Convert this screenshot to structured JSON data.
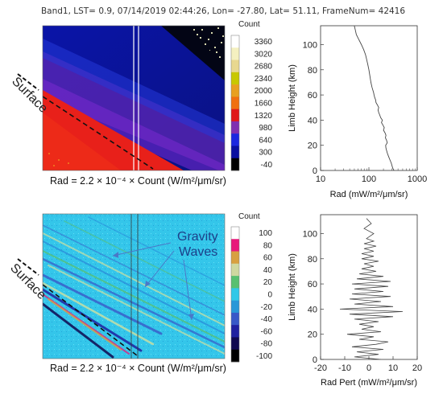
{
  "header": {
    "text": "Band1, LST= 0.9, 07/14/2019 02:44:26, Lon= -27.80, Lat= 51.11, FrameNum=  42416"
  },
  "labels": {
    "surface_top": "Surface",
    "surface_bottom": "Surface",
    "gravity_line1": "Gravity",
    "gravity_line2": "Waves",
    "formula_top": "Rad = 2.2 × 10⁻⁴ × Count (W/m²/μm/sr)",
    "formula_bottom": "Rad = 2.2 × 10⁻⁴ × Count (W/m²/μm/sr)"
  },
  "colors": {
    "top_background": "#0c1a9c",
    "surface_red": "#e8201a",
    "bottom_background": "#30c8e8",
    "profile_line": "#444444"
  },
  "chart_data": [
    {
      "type": "heatmap",
      "title": "",
      "colorbar": {
        "title": "Count",
        "ticks": [
          "3360",
          "3020",
          "2680",
          "2340",
          "2000",
          "1660",
          "1320",
          "980",
          "640",
          "300",
          "-40"
        ],
        "colors": [
          "#ffffff",
          "#f4f0c0",
          "#e8d890",
          "#c8c800",
          "#e8a020",
          "#f07010",
          "#e01818",
          "#8030b0",
          "#1c28e0",
          "#0a10a0",
          "#000000"
        ]
      }
    },
    {
      "type": "line",
      "xlabel": "Rad (mW/m²/μm/sr)",
      "ylabel": "Limb Height (km)",
      "xscale": "log",
      "xlim": [
        10,
        1000
      ],
      "ylim": [
        0,
        115
      ],
      "xticks": [
        "10",
        "100",
        "1000"
      ],
      "yticks": [
        "0",
        "20",
        "40",
        "60",
        "80",
        "100"
      ],
      "series": [
        {
          "x": [
            330,
            310,
            300,
            290,
            275,
            262,
            250,
            240,
            232,
            225,
            222,
            240,
            232,
            220,
            226,
            215,
            200,
            208,
            196,
            182,
            190,
            175,
            168,
            160,
            155,
            160,
            150,
            140,
            138,
            132,
            128,
            125,
            120,
            116,
            113,
            110,
            108,
            106,
            104,
            100,
            95,
            90,
            85,
            78,
            70,
            62,
            55,
            52,
            50
          ],
          "y": [
            0,
            2,
            4,
            6,
            8,
            10,
            12,
            14,
            16,
            18,
            20,
            22,
            24,
            26,
            28,
            30,
            32,
            34,
            36,
            38,
            40,
            42,
            44,
            46,
            48,
            50,
            52,
            54,
            56,
            58,
            60,
            62,
            64,
            66,
            68,
            70,
            72,
            74,
            76,
            80,
            84,
            88,
            92,
            96,
            100,
            104,
            108,
            112,
            115
          ]
        }
      ]
    },
    {
      "type": "heatmap",
      "title": "",
      "colorbar": {
        "title": "Count",
        "ticks": [
          "100",
          "80",
          "60",
          "40",
          "20",
          "0",
          "-20",
          "-40",
          "-60",
          "-80",
          "-100"
        ],
        "colors": [
          "#ffffff",
          "#e8187a",
          "#d8a040",
          "#cfd8a0",
          "#58c070",
          "#30c8e8",
          "#2898d8",
          "#3858c8",
          "#2020a0",
          "#100850",
          "#000000"
        ]
      }
    },
    {
      "type": "line",
      "xlabel": "Rad Pert (mW/m²/μm/sr)",
      "ylabel": "Limb Height (km)",
      "xlim": [
        -20,
        20
      ],
      "ylim": [
        0,
        115
      ],
      "xticks": [
        "-20",
        "-10",
        "0",
        "10",
        "20"
      ],
      "yticks": [
        "0",
        "20",
        "40",
        "60",
        "80",
        "100"
      ],
      "series": [
        {
          "x": [
            5,
            -6,
            4,
            -5,
            6,
            -7,
            3,
            8,
            -4,
            2,
            -9,
            5,
            -3,
            2,
            -4,
            4,
            -6,
            10,
            -8,
            14,
            -12,
            10,
            -6,
            5,
            -8,
            9,
            -7,
            6,
            -6,
            8,
            -7,
            9,
            -5,
            6,
            -4,
            3,
            -3,
            2,
            -2,
            4,
            -3,
            2,
            -3,
            2,
            -2,
            3,
            -2,
            2,
            -1,
            2,
            -2,
            1,
            -1
          ],
          "y": [
            0,
            2,
            4,
            6,
            8,
            10,
            12,
            14,
            16,
            18,
            20,
            22,
            24,
            26,
            28,
            30,
            32,
            34,
            36,
            38,
            40,
            42,
            44,
            46,
            48,
            50,
            52,
            54,
            56,
            58,
            60,
            62,
            64,
            66,
            68,
            70,
            72,
            74,
            76,
            78,
            80,
            82,
            84,
            86,
            88,
            90,
            92,
            94,
            96,
            100,
            104,
            108,
            112
          ]
        }
      ]
    }
  ]
}
